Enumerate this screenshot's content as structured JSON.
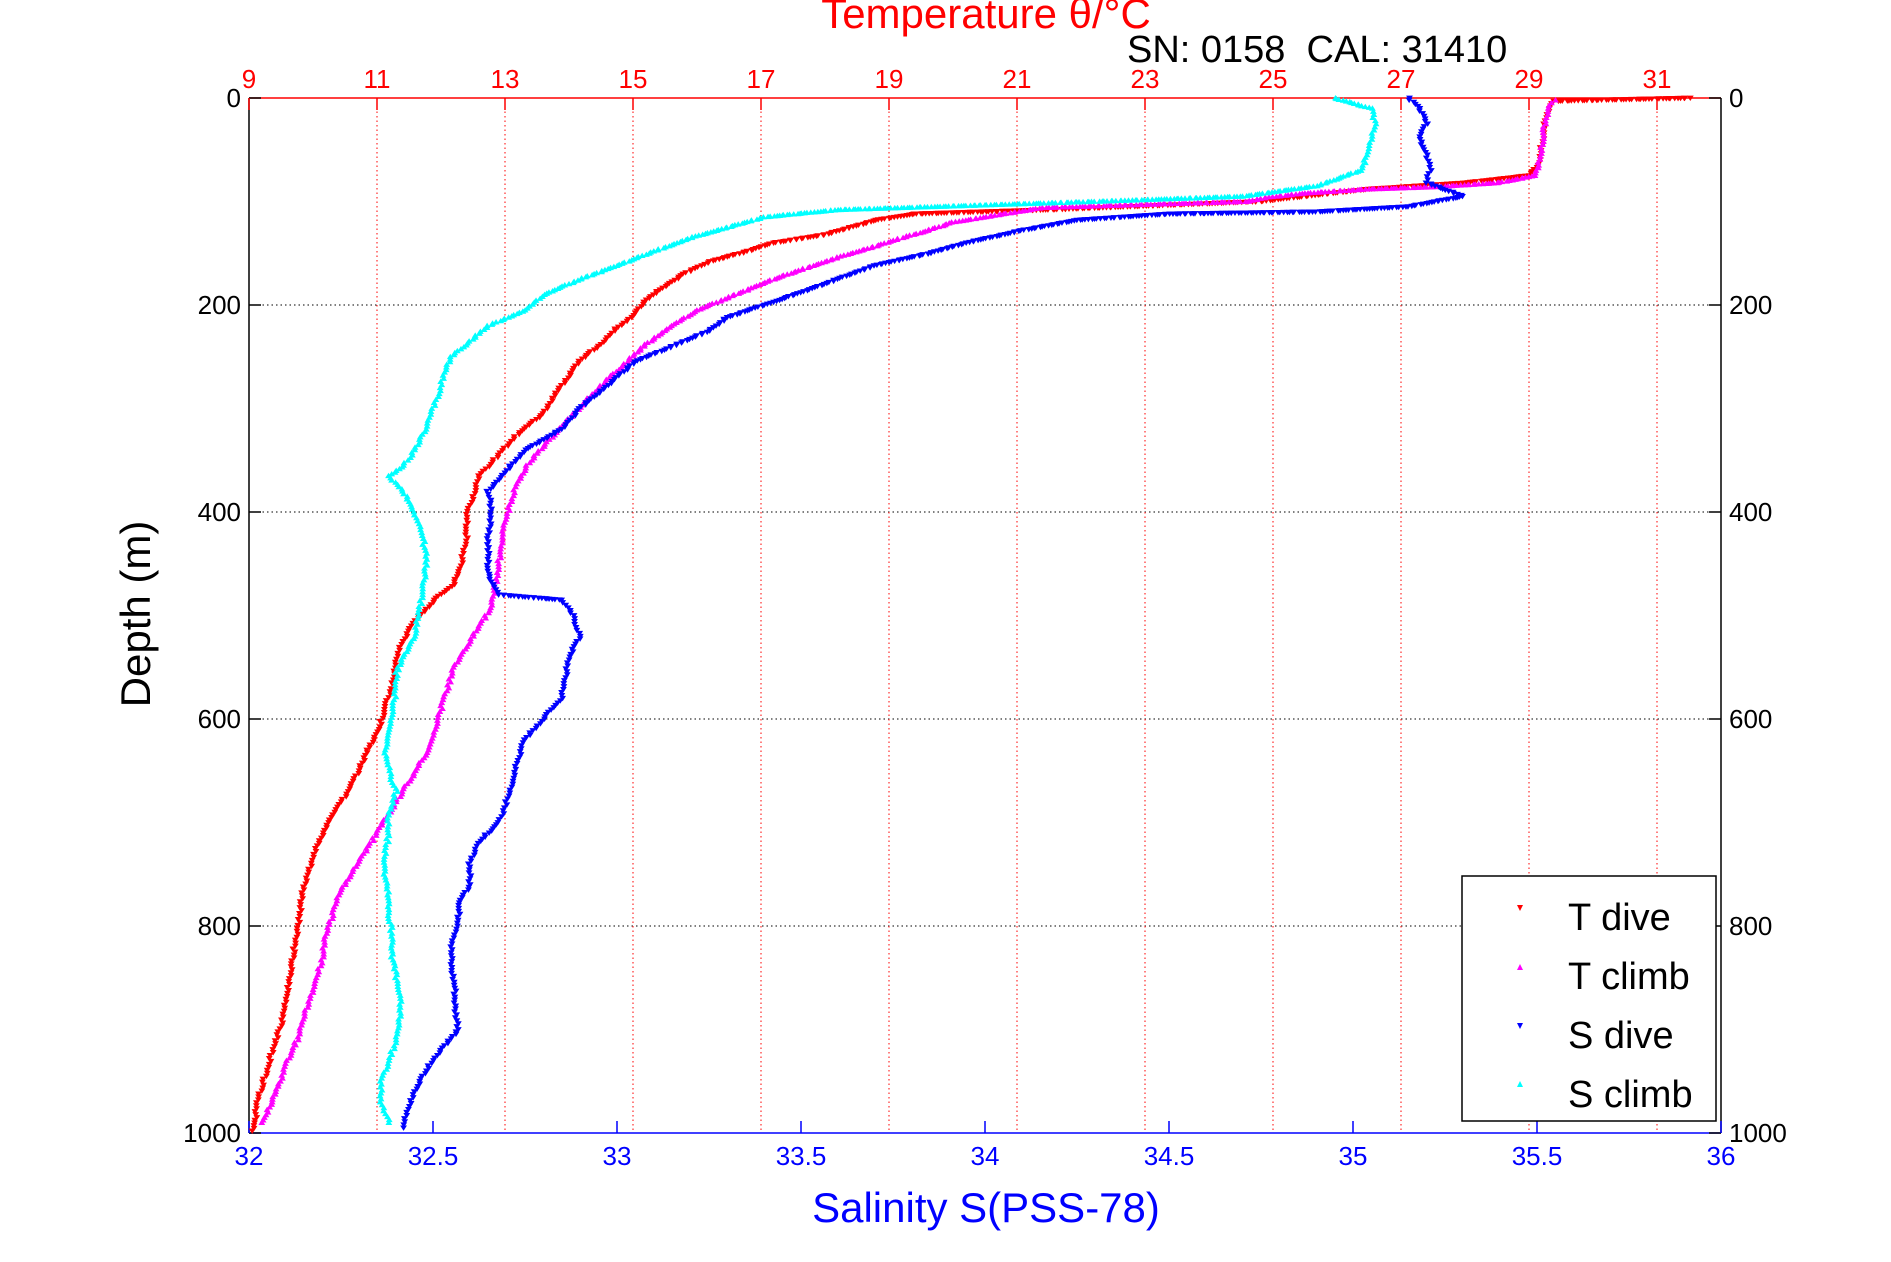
{
  "figure": {
    "top_title": "Temperature θ/°C",
    "annotation": "SN: 0158  CAL: 31410"
  },
  "chart_data": {
    "type": "scatter",
    "title": "Temperature θ/°C",
    "annotation": "SN: 0158  CAL: 31410",
    "ylabel": "Depth (m)",
    "xlabel": "Salinity S(PSS-78)",
    "x2label": "Temperature θ/°C",
    "ylim": [
      0,
      1000
    ],
    "y_reversed": true,
    "yticks": [
      0,
      200,
      400,
      600,
      800,
      1000
    ],
    "xlim_salinity": [
      32,
      36
    ],
    "xticks_salinity": [
      "32",
      "32.5",
      "33",
      "33.5",
      "34",
      "34.5",
      "35",
      "35.5",
      "36"
    ],
    "xlim_temperature": [
      9,
      32
    ],
    "xticks_temperature": [
      "9",
      "11",
      "13",
      "15",
      "17",
      "19",
      "21",
      "23",
      "25",
      "27",
      "29",
      "31"
    ],
    "grid": true,
    "legend_position": "bottom-right",
    "colors": {
      "temperature_axis": "#ff0000",
      "salinity_axis": "#0000ff",
      "grid_horizontal": "#000000",
      "grid_vertical": "#ff0000"
    },
    "series": [
      {
        "name": "T dive",
        "axis": "temperature",
        "marker": "down-triangle",
        "color": "#ff0000",
        "points": [
          [
            31.5,
            0
          ],
          [
            29.4,
            3
          ],
          [
            29.3,
            10
          ],
          [
            29.25,
            25
          ],
          [
            29.2,
            45
          ],
          [
            29.15,
            65
          ],
          [
            29.0,
            75
          ],
          [
            28.0,
            82
          ],
          [
            26.5,
            88
          ],
          [
            25.5,
            95
          ],
          [
            24.8,
            100
          ],
          [
            21.5,
            108
          ],
          [
            19.4,
            112
          ],
          [
            18.8,
            118
          ],
          [
            18.4,
            125
          ],
          [
            18.0,
            132
          ],
          [
            17.2,
            140
          ],
          [
            16.8,
            148
          ],
          [
            16.2,
            158
          ],
          [
            15.8,
            170
          ],
          [
            15.5,
            182
          ],
          [
            15.2,
            195
          ],
          [
            15.0,
            210
          ],
          [
            14.7,
            225
          ],
          [
            14.5,
            238
          ],
          [
            14.2,
            252
          ],
          [
            14.0,
            268
          ],
          [
            13.8,
            285
          ],
          [
            13.6,
            305
          ],
          [
            13.2,
            325
          ],
          [
            12.9,
            345
          ],
          [
            12.6,
            365
          ],
          [
            12.5,
            385
          ],
          [
            12.4,
            405
          ],
          [
            12.4,
            425
          ],
          [
            12.35,
            440
          ],
          [
            12.3,
            455
          ],
          [
            12.2,
            470
          ],
          [
            11.9,
            485
          ],
          [
            11.6,
            505
          ],
          [
            11.4,
            525
          ],
          [
            11.3,
            545
          ],
          [
            11.25,
            565
          ],
          [
            11.15,
            585
          ],
          [
            11.05,
            605
          ],
          [
            10.9,
            625
          ],
          [
            10.75,
            645
          ],
          [
            10.6,
            665
          ],
          [
            10.4,
            685
          ],
          [
            10.2,
            705
          ],
          [
            10.05,
            725
          ],
          [
            9.95,
            745
          ],
          [
            9.85,
            765
          ],
          [
            9.8,
            785
          ],
          [
            9.75,
            805
          ],
          [
            9.7,
            825
          ],
          [
            9.65,
            845
          ],
          [
            9.6,
            865
          ],
          [
            9.55,
            885
          ],
          [
            9.45,
            905
          ],
          [
            9.35,
            925
          ],
          [
            9.25,
            945
          ],
          [
            9.15,
            965
          ],
          [
            9.1,
            985
          ],
          [
            9.05,
            998
          ]
        ]
      },
      {
        "name": "T climb",
        "axis": "temperature",
        "marker": "up-triangle",
        "color": "#ff00ff",
        "points": [
          [
            29.4,
            2
          ],
          [
            29.3,
            10
          ],
          [
            29.25,
            25
          ],
          [
            29.2,
            45
          ],
          [
            29.15,
            65
          ],
          [
            29.1,
            75
          ],
          [
            28.5,
            82
          ],
          [
            27.5,
            86
          ],
          [
            26.5,
            88
          ],
          [
            25.5,
            92
          ],
          [
            24.9,
            96
          ],
          [
            24.6,
            100
          ],
          [
            21.4,
            106
          ],
          [
            20.8,
            112
          ],
          [
            20.0,
            120
          ],
          [
            19.6,
            128
          ],
          [
            19.2,
            135
          ],
          [
            18.8,
            143
          ],
          [
            18.3,
            152
          ],
          [
            17.8,
            162
          ],
          [
            17.2,
            175
          ],
          [
            16.6,
            190
          ],
          [
            16.0,
            205
          ],
          [
            15.6,
            220
          ],
          [
            15.2,
            238
          ],
          [
            14.9,
            255
          ],
          [
            14.6,
            272
          ],
          [
            14.3,
            290
          ],
          [
            14.0,
            310
          ],
          [
            13.7,
            330
          ],
          [
            13.4,
            350
          ],
          [
            13.2,
            370
          ],
          [
            13.1,
            390
          ],
          [
            13.0,
            410
          ],
          [
            12.95,
            430
          ],
          [
            12.9,
            450
          ],
          [
            12.85,
            470
          ],
          [
            12.8,
            490
          ],
          [
            12.6,
            510
          ],
          [
            12.4,
            530
          ],
          [
            12.2,
            550
          ],
          [
            12.1,
            570
          ],
          [
            12.0,
            590
          ],
          [
            11.9,
            610
          ],
          [
            11.8,
            630
          ],
          [
            11.6,
            650
          ],
          [
            11.4,
            670
          ],
          [
            11.2,
            690
          ],
          [
            11.0,
            710
          ],
          [
            10.8,
            730
          ],
          [
            10.6,
            750
          ],
          [
            10.4,
            770
          ],
          [
            10.3,
            790
          ],
          [
            10.2,
            810
          ],
          [
            10.15,
            830
          ],
          [
            10.05,
            850
          ],
          [
            9.95,
            870
          ],
          [
            9.85,
            890
          ],
          [
            9.75,
            910
          ],
          [
            9.6,
            930
          ],
          [
            9.5,
            950
          ],
          [
            9.35,
            970
          ],
          [
            9.2,
            990
          ]
        ]
      },
      {
        "name": "S dive",
        "axis": "salinity",
        "marker": "down-triangle",
        "color": "#0000ff",
        "points": [
          [
            35.15,
            0
          ],
          [
            35.18,
            10
          ],
          [
            35.2,
            25
          ],
          [
            35.18,
            40
          ],
          [
            35.2,
            55
          ],
          [
            35.21,
            70
          ],
          [
            35.2,
            82
          ],
          [
            35.3,
            95
          ],
          [
            35.15,
            105
          ],
          [
            34.9,
            110
          ],
          [
            34.5,
            112
          ],
          [
            34.25,
            118
          ],
          [
            34.1,
            128
          ],
          [
            33.95,
            140
          ],
          [
            33.85,
            150
          ],
          [
            33.7,
            162
          ],
          [
            33.6,
            175
          ],
          [
            33.5,
            188
          ],
          [
            33.4,
            200
          ],
          [
            33.3,
            212
          ],
          [
            33.25,
            225
          ],
          [
            33.15,
            240
          ],
          [
            33.05,
            255
          ],
          [
            33.0,
            270
          ],
          [
            32.95,
            285
          ],
          [
            32.9,
            300
          ],
          [
            32.85,
            320
          ],
          [
            32.75,
            340
          ],
          [
            32.7,
            360
          ],
          [
            32.65,
            380
          ],
          [
            32.66,
            400
          ],
          [
            32.65,
            420
          ],
          [
            32.65,
            440
          ],
          [
            32.65,
            460
          ],
          [
            32.68,
            480
          ],
          [
            32.85,
            485
          ],
          [
            32.88,
            500
          ],
          [
            32.9,
            520
          ],
          [
            32.87,
            540
          ],
          [
            32.86,
            560
          ],
          [
            32.85,
            580
          ],
          [
            32.8,
            600
          ],
          [
            32.75,
            620
          ],
          [
            32.73,
            640
          ],
          [
            32.72,
            660
          ],
          [
            32.7,
            680
          ],
          [
            32.68,
            700
          ],
          [
            32.62,
            720
          ],
          [
            32.6,
            740
          ],
          [
            32.6,
            760
          ],
          [
            32.57,
            780
          ],
          [
            32.57,
            800
          ],
          [
            32.55,
            820
          ],
          [
            32.55,
            840
          ],
          [
            32.56,
            860
          ],
          [
            32.56,
            880
          ],
          [
            32.57,
            900
          ],
          [
            32.52,
            920
          ],
          [
            32.48,
            940
          ],
          [
            32.45,
            960
          ],
          [
            32.43,
            980
          ],
          [
            32.42,
            995
          ]
        ]
      },
      {
        "name": "S climb",
        "axis": "salinity",
        "marker": "up-triangle",
        "color": "#00ffff",
        "points": [
          [
            34.95,
            0
          ],
          [
            35.05,
            10
          ],
          [
            35.06,
            25
          ],
          [
            35.05,
            40
          ],
          [
            35.04,
            55
          ],
          [
            35.02,
            70
          ],
          [
            34.9,
            85
          ],
          [
            34.7,
            95
          ],
          [
            34.3,
            100
          ],
          [
            33.95,
            104
          ],
          [
            33.6,
            108
          ],
          [
            33.4,
            115
          ],
          [
            33.3,
            125
          ],
          [
            33.2,
            135
          ],
          [
            33.1,
            148
          ],
          [
            33.0,
            162
          ],
          [
            32.9,
            175
          ],
          [
            32.8,
            190
          ],
          [
            32.75,
            205
          ],
          [
            32.65,
            220
          ],
          [
            32.6,
            235
          ],
          [
            32.55,
            250
          ],
          [
            32.53,
            265
          ],
          [
            32.52,
            280
          ],
          [
            32.5,
            300
          ],
          [
            32.48,
            320
          ],
          [
            32.45,
            340
          ],
          [
            32.42,
            355
          ],
          [
            32.38,
            365
          ],
          [
            32.42,
            380
          ],
          [
            32.45,
            400
          ],
          [
            32.47,
            420
          ],
          [
            32.48,
            440
          ],
          [
            32.48,
            460
          ],
          [
            32.47,
            480
          ],
          [
            32.46,
            500
          ],
          [
            32.45,
            520
          ],
          [
            32.42,
            540
          ],
          [
            32.4,
            555
          ],
          [
            32.4,
            570
          ],
          [
            32.39,
            590
          ],
          [
            32.38,
            610
          ],
          [
            32.37,
            630
          ],
          [
            32.38,
            650
          ],
          [
            32.4,
            670
          ],
          [
            32.38,
            690
          ],
          [
            32.38,
            710
          ],
          [
            32.37,
            730
          ],
          [
            32.37,
            750
          ],
          [
            32.38,
            770
          ],
          [
            32.38,
            790
          ],
          [
            32.39,
            810
          ],
          [
            32.39,
            830
          ],
          [
            32.4,
            850
          ],
          [
            32.41,
            870
          ],
          [
            32.41,
            890
          ],
          [
            32.4,
            910
          ],
          [
            32.38,
            930
          ],
          [
            32.36,
            950
          ],
          [
            32.36,
            970
          ],
          [
            32.38,
            990
          ]
        ]
      }
    ]
  },
  "legend": {
    "items": [
      {
        "label": "T dive",
        "color": "#ff0000",
        "marker": "down-triangle"
      },
      {
        "label": "T climb",
        "color": "#ff00ff",
        "marker": "up-triangle"
      },
      {
        "label": "S dive",
        "color": "#0000ff",
        "marker": "down-triangle"
      },
      {
        "label": "S climb",
        "color": "#00ffff",
        "marker": "up-triangle"
      }
    ]
  }
}
